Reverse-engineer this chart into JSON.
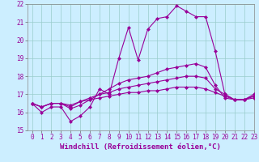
{
  "xlabel": "Windchill (Refroidissement éolien,°C)",
  "background_color": "#cceeff",
  "grid_color": "#99cccc",
  "line_color": "#990099",
  "x_values": [
    0,
    1,
    2,
    3,
    4,
    5,
    6,
    7,
    8,
    9,
    10,
    11,
    12,
    13,
    14,
    15,
    16,
    17,
    18,
    19,
    20,
    21,
    22,
    23
  ],
  "series1": [
    16.5,
    16.0,
    16.3,
    16.3,
    15.5,
    15.8,
    16.3,
    17.3,
    17.0,
    19.0,
    20.7,
    18.9,
    20.6,
    21.2,
    21.3,
    21.9,
    21.6,
    21.3,
    21.3,
    19.4,
    17.0,
    16.7,
    16.7,
    17.0
  ],
  "series2": [
    16.5,
    16.3,
    16.5,
    16.5,
    16.2,
    16.4,
    16.7,
    17.0,
    17.3,
    17.6,
    17.8,
    17.9,
    18.0,
    18.2,
    18.4,
    18.5,
    18.6,
    18.7,
    18.5,
    17.5,
    16.8,
    16.7,
    16.7,
    16.9
  ],
  "series3": [
    16.5,
    16.3,
    16.5,
    16.5,
    16.3,
    16.6,
    16.8,
    17.0,
    17.1,
    17.3,
    17.4,
    17.5,
    17.6,
    17.7,
    17.8,
    17.9,
    18.0,
    18.0,
    17.9,
    17.3,
    17.0,
    16.7,
    16.7,
    16.9
  ],
  "series4": [
    16.5,
    16.3,
    16.5,
    16.5,
    16.4,
    16.6,
    16.7,
    16.8,
    16.9,
    17.0,
    17.1,
    17.1,
    17.2,
    17.2,
    17.3,
    17.4,
    17.4,
    17.4,
    17.3,
    17.1,
    16.9,
    16.7,
    16.7,
    16.8
  ],
  "ylim": [
    15,
    22
  ],
  "xlim": [
    -0.5,
    23
  ],
  "yticks": [
    15,
    16,
    17,
    18,
    19,
    20,
    21,
    22
  ],
  "xticks": [
    0,
    1,
    2,
    3,
    4,
    5,
    6,
    7,
    8,
    9,
    10,
    11,
    12,
    13,
    14,
    15,
    16,
    17,
    18,
    19,
    20,
    21,
    22,
    23
  ],
  "tick_fontsize": 5.5,
  "xlabel_fontsize": 6.5,
  "marker_size": 2.5,
  "linewidth": 0.8
}
